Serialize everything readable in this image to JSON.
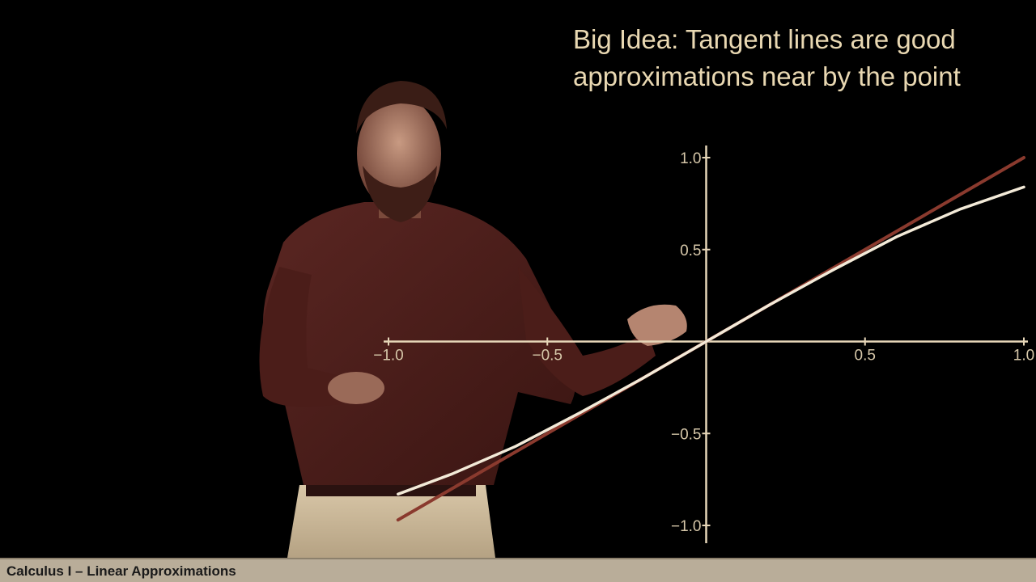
{
  "headline": {
    "line1": "Big Idea: Tangent lines are good",
    "line2": "approximations near by the point"
  },
  "footer": {
    "caption": "Calculus I – Linear Approximations"
  },
  "colors": {
    "background": "#000000",
    "headline_text": "#e9d8b2",
    "axis": "#e6d6b8",
    "tangent_line": "#8a3a2e",
    "curve": "#f3ead8",
    "footer_bar": "#b9ad99"
  },
  "chart_data": {
    "type": "line",
    "title": "",
    "xlabel": "",
    "ylabel": "",
    "xlim": [
      -1.0,
      1.0
    ],
    "ylim": [
      -1.0,
      1.0
    ],
    "x_ticks": [
      "−1.0",
      "−0.5",
      "0.5",
      "1.0"
    ],
    "y_ticks": [
      "1.0",
      "0.5",
      "−0.5",
      "−1.0"
    ],
    "x_tick_values": [
      -1.0,
      -0.5,
      0.5,
      1.0
    ],
    "y_tick_values": [
      1.0,
      0.5,
      -0.5,
      -1.0
    ],
    "grid": false,
    "series": [
      {
        "name": "",
        "kind": "tangent line",
        "x": [
          -0.97,
          1.0
        ],
        "y": [
          -0.97,
          1.0
        ]
      },
      {
        "name": "",
        "kind": "curve",
        "x": [
          -0.97,
          -0.8,
          -0.6,
          -0.4,
          -0.2,
          0.0,
          0.2,
          0.4,
          0.6,
          0.8,
          1.0
        ],
        "y": [
          -0.83,
          -0.72,
          -0.57,
          -0.39,
          -0.2,
          0.0,
          0.2,
          0.39,
          0.57,
          0.72,
          0.84
        ]
      }
    ]
  }
}
